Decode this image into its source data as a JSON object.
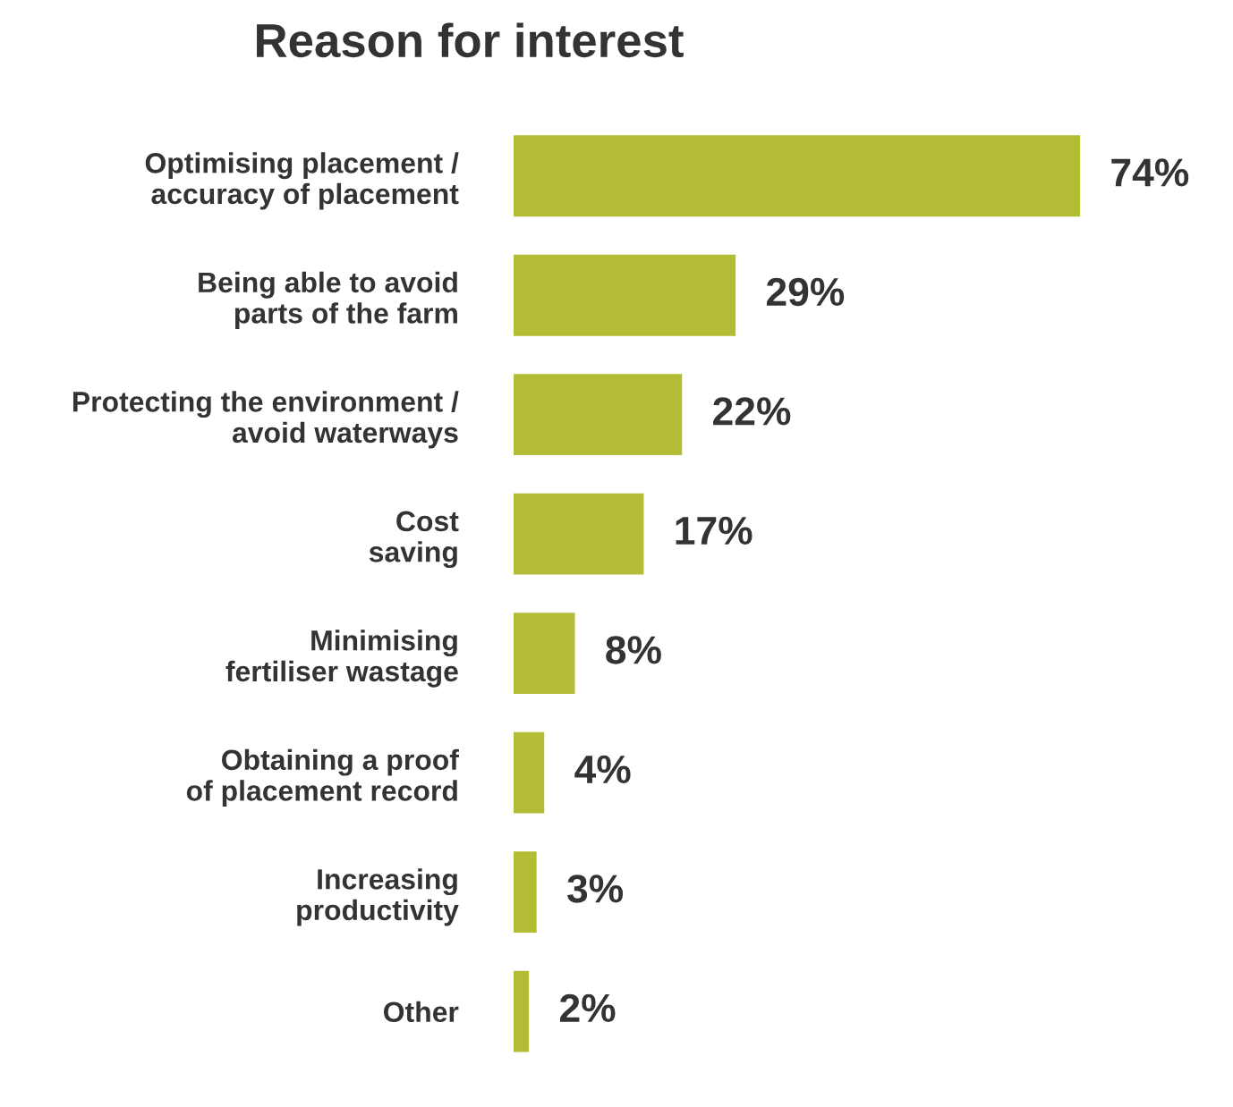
{
  "chart_data": {
    "type": "bar",
    "orientation": "horizontal",
    "title": "Reason for interest",
    "categories": [
      "Optimising placement /\naccuracy of placement",
      "Being able to avoid\nparts of the farm",
      "Protecting the environment /\navoid waterways",
      "Cost\nsaving",
      "Minimising\nfertiliser wastage",
      "Obtaining a proof\nof placement record",
      "Increasing\nproductivity",
      "Other"
    ],
    "values": [
      74,
      29,
      22,
      17,
      8,
      4,
      3,
      2
    ],
    "value_labels": [
      "74%",
      "29%",
      "22%",
      "17%",
      "8%",
      "4%",
      "3%",
      "2%"
    ],
    "color": "#b3bc35",
    "grid": false,
    "legend": false,
    "tick_labels": "y"
  }
}
